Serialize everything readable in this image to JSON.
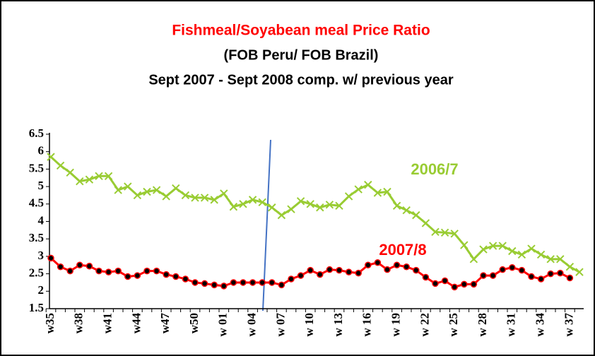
{
  "chart_data": {
    "type": "line",
    "title": "Fishmeal/Soyabean meal Price Ratio",
    "subtitle": [
      "(FOB Peru/ FOB Brazil)",
      "Sept 2007 - Sept 2008 comp. w/ previous year"
    ],
    "categories": [
      "w35",
      null,
      null,
      "w38",
      null,
      null,
      "w41",
      null,
      null,
      "w44",
      null,
      null,
      "w47",
      null,
      null,
      "w50",
      null,
      null,
      "w 01",
      null,
      null,
      "w 04",
      null,
      null,
      "w 07",
      null,
      null,
      "w 10",
      null,
      null,
      "w 13",
      null,
      null,
      "w 16",
      null,
      null,
      "w 19",
      null,
      null,
      "w 22",
      null,
      null,
      "w 25",
      null,
      null,
      "w 28",
      null,
      null,
      "w 31",
      null,
      null,
      "w 34",
      null,
      null,
      "w 37",
      null
    ],
    "series": [
      {
        "name": "2006/7",
        "color": "#99cc33",
        "marker": "x",
        "values": [
          5.85,
          5.6,
          5.4,
          5.15,
          5.2,
          5.3,
          5.3,
          4.9,
          5.0,
          4.75,
          4.85,
          4.9,
          4.72,
          4.95,
          4.75,
          4.68,
          4.68,
          4.62,
          4.8,
          4.42,
          4.5,
          4.62,
          4.55,
          4.4,
          4.18,
          4.35,
          4.58,
          4.5,
          4.4,
          4.48,
          4.45,
          4.72,
          4.92,
          5.05,
          4.82,
          4.85,
          4.45,
          4.32,
          4.18,
          3.95,
          3.7,
          3.68,
          3.65,
          3.32,
          2.92,
          3.2,
          3.3,
          3.3,
          3.15,
          3.05,
          3.22,
          3.05,
          2.92,
          2.92,
          2.7,
          2.55
        ]
      },
      {
        "name": "2007/8",
        "color": "#ff0000",
        "marker": "dot",
        "values": [
          2.95,
          2.7,
          2.58,
          2.75,
          2.72,
          2.58,
          2.55,
          2.58,
          2.42,
          2.45,
          2.58,
          2.58,
          2.48,
          2.42,
          2.35,
          2.25,
          2.22,
          2.18,
          2.15,
          2.25,
          2.25,
          2.25,
          2.25,
          2.25,
          2.18,
          2.35,
          2.45,
          2.6,
          2.48,
          2.62,
          2.6,
          2.55,
          2.52,
          2.75,
          2.82,
          2.62,
          2.75,
          2.7,
          2.6,
          2.4,
          2.22,
          2.3,
          2.12,
          2.2,
          2.2,
          2.45,
          2.45,
          2.62,
          2.68,
          2.6,
          2.42,
          2.35,
          2.5,
          2.52,
          2.38,
          null
        ]
      }
    ],
    "ylim": [
      1.5,
      6.5
    ],
    "yticks": [
      1.5,
      2,
      2.5,
      3,
      3.5,
      4,
      4.5,
      5,
      5.5,
      6,
      6.5
    ]
  }
}
